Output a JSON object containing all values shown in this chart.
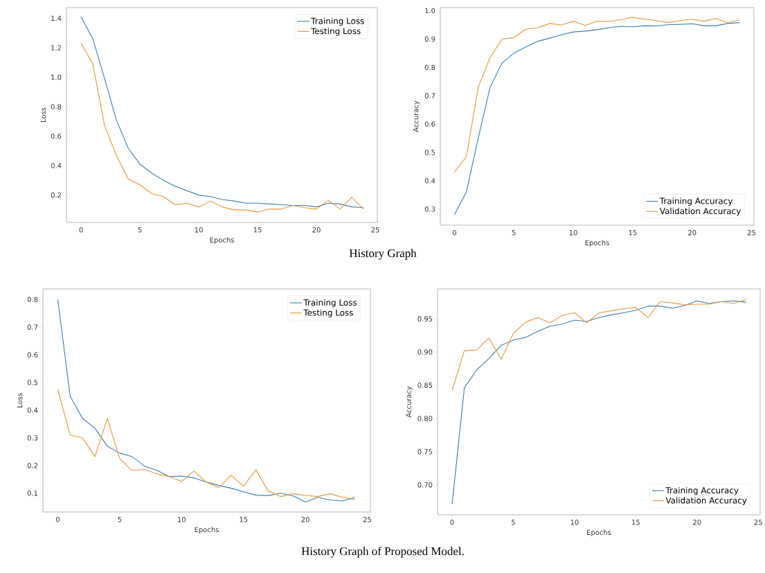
{
  "chart_data": [
    {
      "type": "line",
      "xlabel": "Epochs",
      "ylabel": "Loss",
      "x": [
        0,
        1,
        2,
        3,
        4,
        5,
        6,
        7,
        8,
        9,
        10,
        11,
        12,
        13,
        14,
        15,
        16,
        17,
        18,
        19,
        20,
        21,
        22,
        23,
        24
      ],
      "series": [
        {
          "name": "Training Loss",
          "color": "#3a7fae",
          "values": [
            1.41,
            1.26,
            0.99,
            0.71,
            0.52,
            0.41,
            0.35,
            0.3,
            0.26,
            0.23,
            0.2,
            0.19,
            0.17,
            0.16,
            0.145,
            0.145,
            0.14,
            0.135,
            0.13,
            0.13,
            0.12,
            0.145,
            0.14,
            0.12,
            0.115
          ]
        },
        {
          "name": "Testing Loss",
          "color": "#e8973a",
          "values": [
            1.23,
            1.09,
            0.67,
            0.47,
            0.31,
            0.27,
            0.21,
            0.19,
            0.135,
            0.145,
            0.12,
            0.16,
            0.12,
            0.1,
            0.1,
            0.085,
            0.105,
            0.105,
            0.13,
            0.115,
            0.105,
            0.165,
            0.105,
            0.185,
            0.105
          ]
        }
      ],
      "xlim": [
        -1.24,
        25.17
      ],
      "xticks": [
        0,
        5,
        10,
        15,
        20,
        25
      ],
      "ylim": [
        0.015,
        1.472
      ],
      "yticks": [
        0.2,
        0.4,
        0.6,
        0.8,
        {
          "value": 1.0,
          "label": "1.0"
        },
        1.2,
        1.4
      ],
      "legend": "top right",
      "grid": false,
      "annotations": [
        "History Graph"
      ]
    },
    {
      "type": "line",
      "xlabel": "Epochs",
      "ylabel": "Accuracy",
      "x": [
        0,
        1,
        2,
        3,
        4,
        5,
        6,
        7,
        8,
        9,
        10,
        11,
        12,
        13,
        14,
        15,
        16,
        17,
        18,
        19,
        20,
        21,
        22,
        23,
        24
      ],
      "series": [
        {
          "name": "Training Accuracy",
          "color": "#3a7fae",
          "values": [
            0.28,
            0.36,
            0.55,
            0.73,
            0.815,
            0.85,
            0.872,
            0.892,
            0.903,
            0.915,
            0.925,
            0.928,
            0.933,
            0.94,
            0.945,
            0.943,
            0.947,
            0.946,
            0.951,
            0.952,
            0.954,
            0.947,
            0.947,
            0.955,
            0.958
          ]
        },
        {
          "name": "Validation Accuracy",
          "color": "#e8973a",
          "values": [
            0.43,
            0.485,
            0.73,
            0.835,
            0.9,
            0.905,
            0.935,
            0.94,
            0.955,
            0.95,
            0.963,
            0.948,
            0.963,
            0.962,
            0.968,
            0.977,
            0.97,
            0.965,
            0.958,
            0.965,
            0.97,
            0.963,
            0.973,
            0.957,
            0.968
          ]
        }
      ],
      "xlim": [
        -1.19,
        25.2
      ],
      "xticks": [
        0,
        5,
        10,
        15,
        20,
        25
      ],
      "ylim": [
        0.243,
        1.011
      ],
      "yticks": [
        0.3,
        0.4,
        0.5,
        0.6,
        0.7,
        0.8,
        0.9,
        {
          "value": 1.0,
          "label": "1.0"
        }
      ],
      "legend": "bottom right",
      "grid": false
    },
    {
      "type": "line",
      "xlabel": "Epochs",
      "ylabel": "Loss",
      "x": [
        0,
        1,
        2,
        3,
        4,
        5,
        6,
        7,
        8,
        9,
        10,
        11,
        12,
        13,
        14,
        15,
        16,
        17,
        18,
        19,
        20,
        21,
        22,
        23,
        24
      ],
      "series": [
        {
          "name": "Training Loss",
          "color": "#3a7fae",
          "values": [
            0.8,
            0.45,
            0.37,
            0.335,
            0.27,
            0.245,
            0.232,
            0.198,
            0.183,
            0.16,
            0.162,
            0.155,
            0.14,
            0.128,
            0.118,
            0.105,
            0.093,
            0.091,
            0.1,
            0.09,
            0.068,
            0.085,
            0.075,
            0.072,
            0.085
          ]
        },
        {
          "name": "Testing Loss",
          "color": "#e8973a",
          "values": [
            0.475,
            0.31,
            0.3,
            0.232,
            0.37,
            0.225,
            0.182,
            0.186,
            0.17,
            0.16,
            0.142,
            0.18,
            0.14,
            0.12,
            0.165,
            0.125,
            0.185,
            0.108,
            0.088,
            0.098,
            0.092,
            0.088,
            0.098,
            0.085,
            0.077
          ]
        }
      ],
      "xlim": [
        -1.2,
        25.25
      ],
      "xticks": [
        0,
        5,
        10,
        15,
        20,
        25
      ],
      "ylim": [
        0.032,
        0.838
      ],
      "yticks": [
        0.1,
        0.2,
        0.3,
        0.4,
        0.5,
        0.6,
        0.7,
        0.8
      ],
      "legend": "top right",
      "grid": false,
      "annotations": [
        "History Graph of Proposed Model."
      ]
    },
    {
      "type": "line",
      "xlabel": "Epochs",
      "ylabel": "Accuracy",
      "x": [
        0,
        1,
        2,
        3,
        4,
        5,
        6,
        7,
        8,
        9,
        10,
        11,
        12,
        13,
        14,
        15,
        16,
        17,
        18,
        19,
        20,
        21,
        22,
        23,
        24
      ],
      "series": [
        {
          "name": "Training Accuracy",
          "color": "#3a7fae",
          "values": [
            0.671,
            0.846,
            0.873,
            0.89,
            0.91,
            0.918,
            0.922,
            0.931,
            0.939,
            0.942,
            0.948,
            0.946,
            0.952,
            0.956,
            0.959,
            0.963,
            0.969,
            0.969,
            0.966,
            0.97,
            0.977,
            0.973,
            0.976,
            0.977,
            0.975
          ]
        },
        {
          "name": "Validation Accuracy",
          "color": "#e8973a",
          "values": [
            0.842,
            0.902,
            0.903,
            0.921,
            0.889,
            0.928,
            0.945,
            0.952,
            0.944,
            0.955,
            0.959,
            0.944,
            0.959,
            0.962,
            0.965,
            0.967,
            0.952,
            0.976,
            0.974,
            0.971,
            0.972,
            0.972,
            0.976,
            0.973,
            0.979
          ]
        }
      ],
      "xlim": [
        -1.19,
        25.16
      ],
      "xticks": [
        0,
        5,
        10,
        15,
        20,
        25
      ],
      "ylim": [
        0.655,
        0.995
      ],
      "yticks": [
        {
          "value": 0.7,
          "label": "0.70"
        },
        0.75,
        {
          "value": 0.8,
          "label": "0.80"
        },
        0.85,
        {
          "value": 0.9,
          "label": "0.90"
        },
        0.95
      ],
      "legend": "bottom right",
      "grid": false
    }
  ]
}
